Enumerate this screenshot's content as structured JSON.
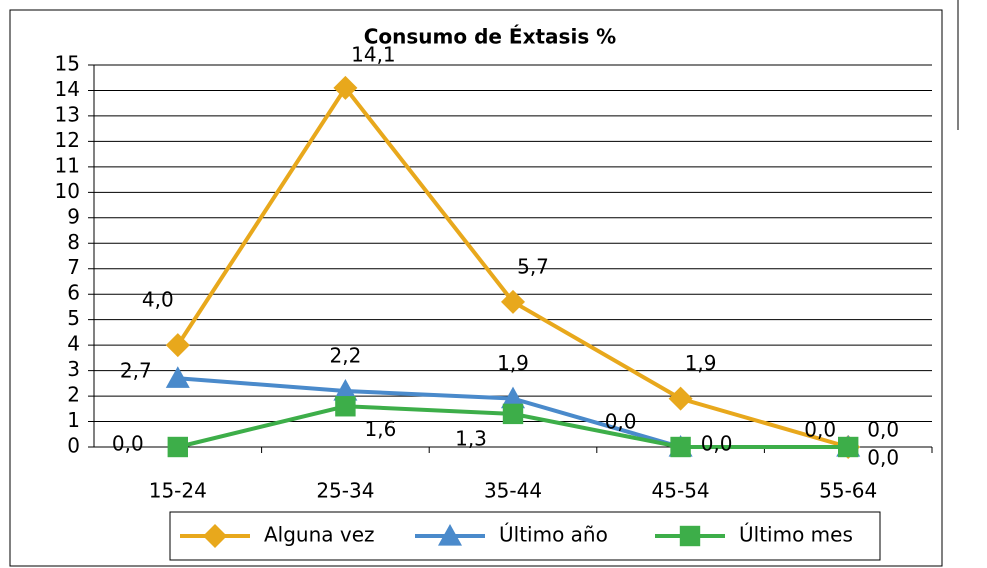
{
  "chart_data": {
    "type": "line",
    "title": "Consumo de Éxtasis %",
    "categories": [
      "15-24",
      "25-34",
      "35-44",
      "45-54",
      "55-64"
    ],
    "series": [
      {
        "name": "Alguna vez",
        "color": "#e8a81c",
        "marker": "diamond",
        "values": [
          4.0,
          14.1,
          5.7,
          1.9,
          0.0
        ],
        "value_labels": [
          "4,0",
          "14,1",
          "5,7",
          "1,9",
          "0,0"
        ]
      },
      {
        "name": "Último año",
        "color": "#4a8acb",
        "marker": "triangle",
        "values": [
          2.7,
          2.2,
          1.9,
          0.0,
          0.0
        ],
        "value_labels": [
          "2,7",
          "2,2",
          "1,9",
          "0,0",
          "0,0"
        ]
      },
      {
        "name": "Último mes",
        "color": "#3dae49",
        "marker": "square",
        "values": [
          0.0,
          1.6,
          1.3,
          0.0,
          0.0
        ],
        "value_labels": [
          "0,0",
          "1,6",
          "1,3",
          "0,0",
          "0,0"
        ]
      }
    ],
    "ylim": [
      0,
      15
    ],
    "yticks": [
      0,
      1,
      2,
      3,
      4,
      5,
      6,
      7,
      8,
      9,
      10,
      11,
      12,
      13,
      14,
      15
    ],
    "grid": true,
    "legend": "bottom"
  }
}
